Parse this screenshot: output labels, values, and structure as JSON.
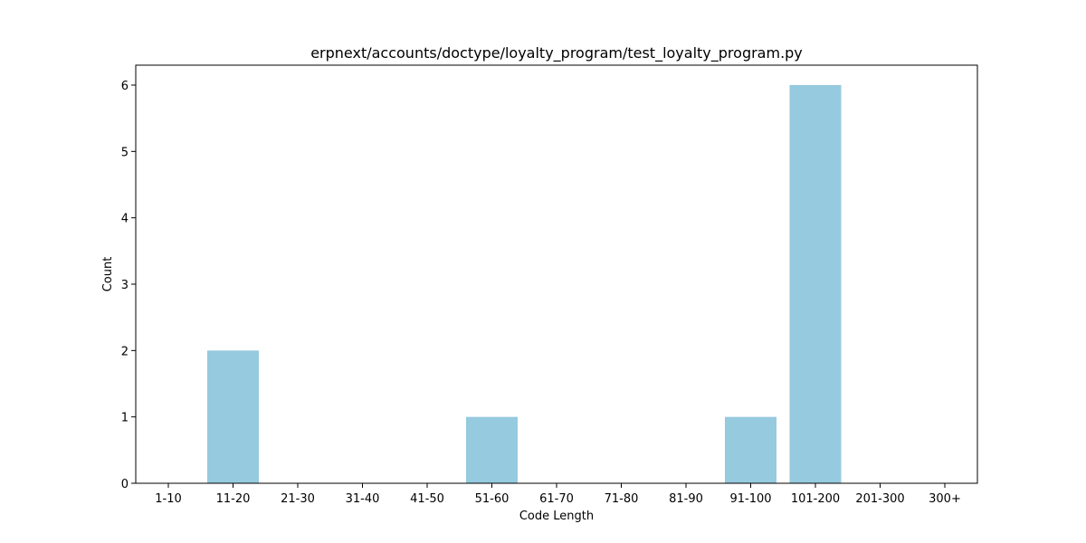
{
  "chart_data": {
    "type": "bar",
    "title": "erpnext/accounts/doctype/loyalty_program/test_loyalty_program.py",
    "xlabel": "Code Length",
    "ylabel": "Count",
    "categories": [
      "1-10",
      "11-20",
      "21-30",
      "31-40",
      "41-50",
      "51-60",
      "61-70",
      "71-80",
      "81-90",
      "91-100",
      "101-200",
      "201-300",
      "300+"
    ],
    "values": [
      0,
      2,
      0,
      0,
      0,
      1,
      0,
      0,
      0,
      1,
      6,
      0,
      0
    ],
    "ylim": [
      0,
      6.3
    ],
    "yticks": [
      0,
      1,
      2,
      3,
      4,
      5,
      6
    ],
    "bar_color": "#96cade",
    "grid": false,
    "legend": "none"
  }
}
